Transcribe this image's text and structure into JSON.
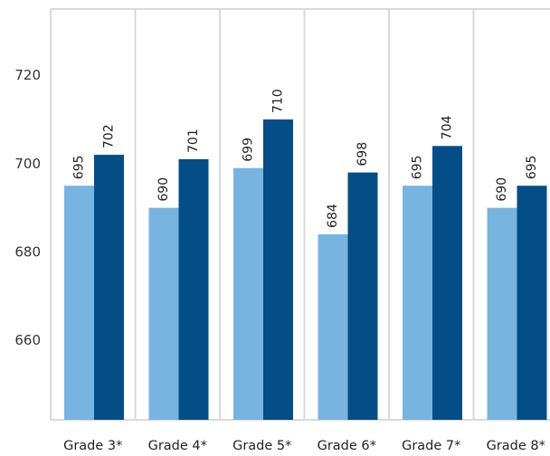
{
  "chart_data": {
    "type": "bar",
    "categories": [
      "Grade 3*",
      "Grade 4*",
      "Grade 5*",
      "Grade 6*",
      "Grade 7*",
      "Grade 8*"
    ],
    "series": [
      {
        "color": "#78b4e0",
        "values": [
          695,
          690,
          699,
          684,
          695,
          690
        ]
      },
      {
        "color": "#034e86",
        "values": [
          702,
          701,
          710,
          698,
          704,
          695
        ]
      }
    ],
    "value_labels": [
      [
        "695",
        "690",
        "699",
        "684",
        "695",
        "690"
      ],
      [
        "702",
        "701",
        "710",
        "698",
        "704",
        "695"
      ]
    ],
    "y_ticks": [
      660,
      680,
      700,
      720
    ],
    "ylim": [
      642,
      735
    ],
    "grid": false,
    "category_dividers": true,
    "title": "",
    "xlabel": "",
    "ylabel": ""
  }
}
